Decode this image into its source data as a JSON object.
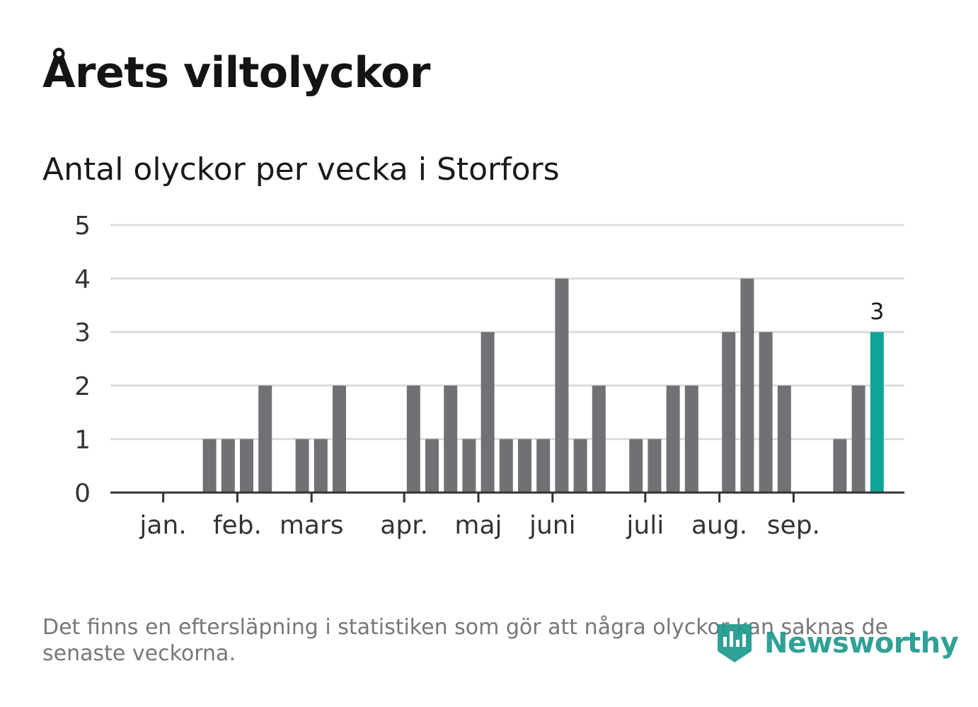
{
  "header": {
    "title": "Årets viltolyckor",
    "subtitle": "Antal olyckor per vecka i Storfors"
  },
  "footer": {
    "note": "Det finns en eftersläpning i statistiken som gör att några olyckor kan saknas de senaste veckorna.",
    "brand": "Newsworthy"
  },
  "colors": {
    "bar": "#717075",
    "highlight": "#0ea597",
    "grid": "#dcdcdc",
    "axis": "#333333",
    "brand": "#1f9a8e"
  },
  "chart_data": {
    "type": "bar",
    "title": "Antal olyckor per vecka i Storfors",
    "xlabel": "",
    "ylabel": "",
    "ylim": [
      0,
      5
    ],
    "yticks": [
      0,
      1,
      2,
      3,
      4,
      5
    ],
    "grid": true,
    "weeks": [
      1,
      2,
      3,
      4,
      5,
      6,
      7,
      8,
      9,
      10,
      11,
      12,
      13,
      14,
      15,
      16,
      17,
      18,
      19,
      20,
      21,
      22,
      23,
      24,
      25,
      26,
      27,
      28,
      29,
      30,
      31,
      32,
      33,
      34,
      35,
      36,
      37,
      38,
      39,
      40
    ],
    "values": [
      0,
      0,
      0,
      1,
      1,
      1,
      2,
      0,
      1,
      1,
      2,
      0,
      0,
      0,
      2,
      1,
      2,
      1,
      3,
      1,
      1,
      1,
      4,
      1,
      2,
      0,
      1,
      1,
      2,
      2,
      0,
      3,
      4,
      3,
      2,
      0,
      0,
      1,
      2,
      3
    ],
    "highlight_index": 39,
    "highlight_label": "3",
    "month_ticks": [
      {
        "label": "jan.",
        "week": 1.5
      },
      {
        "label": "feb.",
        "week": 5.5
      },
      {
        "label": "mars",
        "week": 9.5
      },
      {
        "label": "apr.",
        "week": 14.5
      },
      {
        "label": "maj",
        "week": 18.5
      },
      {
        "label": "juni",
        "week": 22.5
      },
      {
        "label": "juli",
        "week": 27.5
      },
      {
        "label": "aug.",
        "week": 31.5
      },
      {
        "label": "sep.",
        "week": 35.5
      }
    ]
  }
}
